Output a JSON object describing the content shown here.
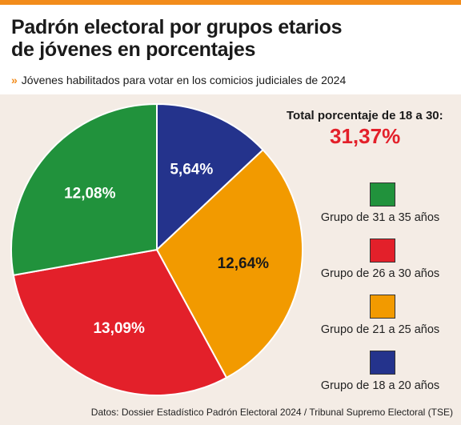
{
  "header": {
    "title_line1": "Padrón electoral por grupos etarios",
    "title_line2": "de jóvenes en porcentajes",
    "subtitle": "Jóvenes habilitados para votar en los comicios judiciales de 2024"
  },
  "total": {
    "label": "Total porcentaje de 18 a 30:",
    "value": "31,37%"
  },
  "source": "Datos: Dossier Estadístico Padrón Electoral 2024 / Tribunal Supremo Electoral (TSE)",
  "colors": {
    "accent": "#f28c1b",
    "panel": "#f4ece5",
    "total": "#e3202a"
  },
  "chart_data": {
    "type": "pie",
    "title": "Padrón electoral por grupos etarios de jóvenes en porcentajes",
    "subtitle": "Jóvenes habilitados para votar en los comicios judiciales de 2024",
    "slices": [
      {
        "label": "Grupo de 18 a 20 años",
        "value": 5.64,
        "value_label": "5,64%",
        "color": "#24338c"
      },
      {
        "label": "Grupo de 21 a 25 años",
        "value": 12.64,
        "value_label": "12,64%",
        "color": "#f29a00"
      },
      {
        "label": "Grupo de 26 a 30 años",
        "value": 13.09,
        "value_label": "13,09%",
        "color": "#e3202a"
      },
      {
        "label": "Grupo de 31 a 35 años",
        "value": 12.08,
        "value_label": "12,08%",
        "color": "#21923c"
      }
    ],
    "legend": {
      "placement": "right",
      "order": [
        3,
        2,
        1,
        0
      ]
    }
  }
}
